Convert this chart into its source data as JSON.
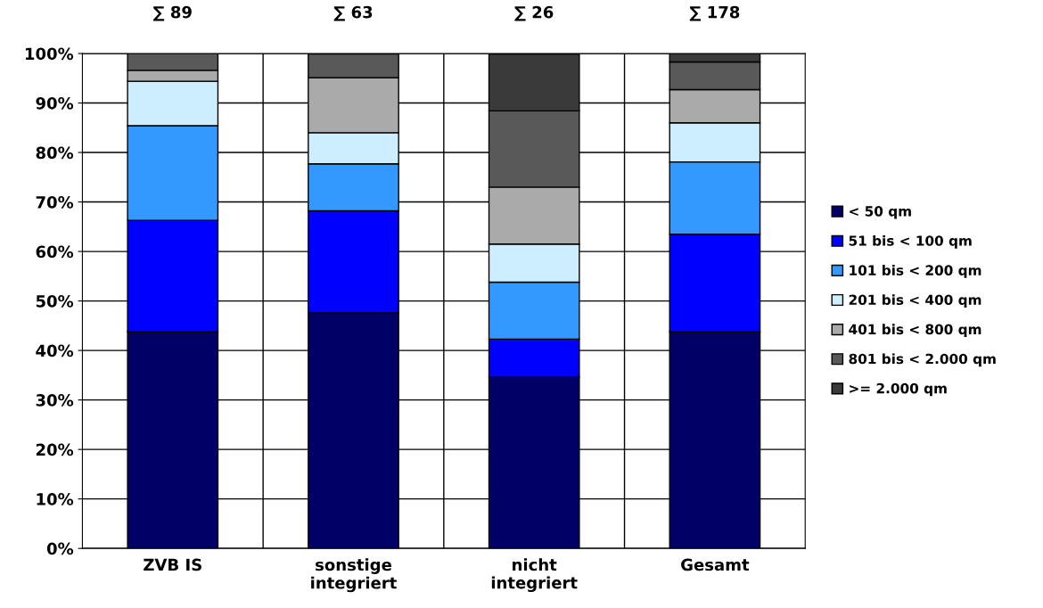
{
  "chart_data": {
    "type": "bar",
    "stacked": true,
    "categories": [
      "ZVB IS",
      "sonstige\nintegriert",
      "nicht\nintegriert",
      "Gesamt"
    ],
    "series": [
      {
        "name": "< 50 qm",
        "color": "#000066",
        "values": [
          43.8,
          47.6,
          34.6,
          43.8
        ]
      },
      {
        "name": "51 bis < 100 qm",
        "color": "#0000ff",
        "values": [
          22.5,
          20.6,
          7.7,
          19.7
        ]
      },
      {
        "name": "101 bis < 200 qm",
        "color": "#3399ff",
        "values": [
          19.1,
          9.5,
          11.5,
          14.6
        ]
      },
      {
        "name": "201 bis < 400 qm",
        "color": "#cceeff",
        "values": [
          9.0,
          6.3,
          7.7,
          7.9
        ]
      },
      {
        "name": "401 bis < 800 qm",
        "color": "#aaaaaa",
        "values": [
          2.2,
          11.1,
          11.5,
          6.7
        ]
      },
      {
        "name": "801 bis < 2.000 qm",
        "color": "#595959",
        "values": [
          3.4,
          4.8,
          15.4,
          5.6
        ]
      },
      {
        "name": ">= 2.000 qm",
        "color": "#3a3a3a",
        "values": [
          null,
          null,
          11.5,
          1.7
        ]
      }
    ],
    "annotations": [
      {
        "text": "∑ 89",
        "x": "ZVB IS",
        "y": 100
      },
      {
        "text": "∑ 63",
        "x": "sonstige\nintegriert",
        "y": 100
      },
      {
        "text": "∑ 26",
        "x": "nicht\nintegriert",
        "y": 100
      },
      {
        "text": "∑ 178",
        "x": "Gesamt",
        "y": 100
      }
    ],
    "ylim": [
      0,
      100
    ],
    "yticks": [
      {
        "value": 0,
        "label": "0%"
      },
      {
        "value": 10,
        "label": "10%"
      },
      {
        "value": 20,
        "label": "20%"
      },
      {
        "value": 30,
        "label": "30%"
      },
      {
        "value": 40,
        "label": "40%"
      },
      {
        "value": 50,
        "label": "50%"
      },
      {
        "value": 60,
        "label": "60%"
      },
      {
        "value": 70,
        "label": "70%"
      },
      {
        "value": 80,
        "label": "80%"
      },
      {
        "value": 90,
        "label": "90%"
      },
      {
        "value": 100,
        "label": "100%"
      }
    ],
    "grid": true,
    "legend": "right"
  }
}
